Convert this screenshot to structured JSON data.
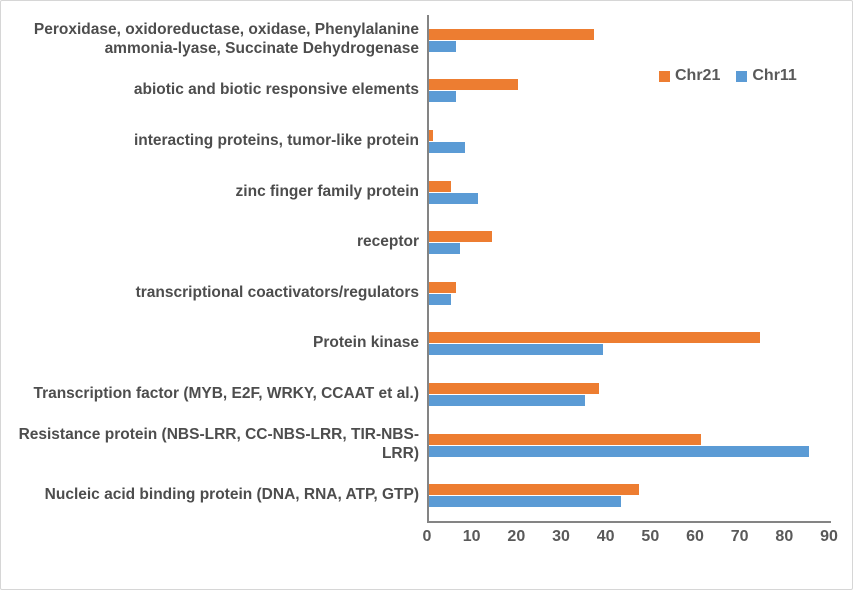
{
  "chart_data": {
    "type": "bar",
    "orientation": "horizontal",
    "title": "",
    "xlabel": "",
    "ylabel": "",
    "grid": false,
    "legend_position": "inside-top-right",
    "xlim": [
      0,
      90
    ],
    "xticks": [
      0,
      10,
      20,
      30,
      40,
      50,
      60,
      70,
      80,
      90
    ],
    "categories": [
      "Peroxidase,  oxidoreductase, oxidase, Phenylalanine ammonia-lyase, Succinate Dehydrogenase",
      "abiotic and biotic responsive elements",
      "interacting proteins, tumor-like protein",
      "zinc finger family protein",
      "receptor",
      "transcriptional coactivators/regulators",
      "Protein kinase",
      "Transcription factor (MYB, E2F, WRKY, CCAAT et al.)",
      "Resistance protein (NBS-LRR, CC-NBS-LRR, TIR-NBS-LRR)",
      "Nucleic acid binding protein (DNA, RNA, ATP, GTP)"
    ],
    "series": [
      {
        "name": "Chr21",
        "color": "#ED7D31",
        "values": [
          37,
          20,
          1,
          5,
          14,
          6,
          74,
          38,
          61,
          47
        ]
      },
      {
        "name": "Chr11",
        "color": "#5B9BD5",
        "values": [
          6,
          6,
          8,
          11,
          7,
          5,
          39,
          35,
          85,
          43
        ]
      }
    ]
  },
  "colors": {
    "axis_line": "#848484",
    "tick_text": "#595959",
    "category_text": "#4d4d4d"
  }
}
